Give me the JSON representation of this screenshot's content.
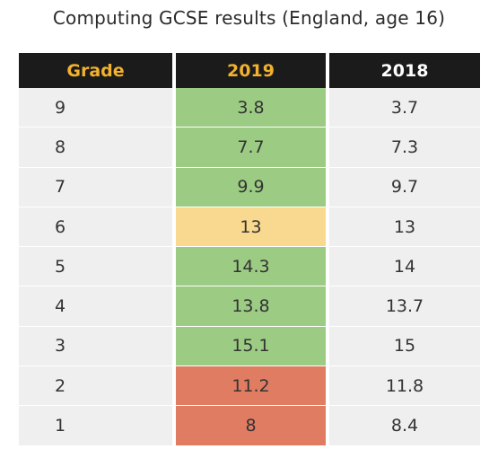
{
  "chart_data": {
    "type": "table",
    "title": "Computing GCSE results (England, age 16)",
    "columns": [
      "Grade",
      "2019",
      "2018"
    ],
    "rows": [
      {
        "grade": "9",
        "y2019": "3.8",
        "y2018": "3.7",
        "highlight": "#9ccb83"
      },
      {
        "grade": "8",
        "y2019": "7.7",
        "y2018": "7.3",
        "highlight": "#9ccb83"
      },
      {
        "grade": "7",
        "y2019": "9.9",
        "y2018": "9.7",
        "highlight": "#9ccb83"
      },
      {
        "grade": "6",
        "y2019": "13",
        "y2018": "13",
        "highlight": "#f8d98f"
      },
      {
        "grade": "5",
        "y2019": "14.3",
        "y2018": "14",
        "highlight": "#9ccb83"
      },
      {
        "grade": "4",
        "y2019": "13.8",
        "y2018": "13.7",
        "highlight": "#9ccb83"
      },
      {
        "grade": "3",
        "y2019": "15.1",
        "y2018": "15",
        "highlight": "#9ccb83"
      },
      {
        "grade": "2",
        "y2019": "11.2",
        "y2018": "11.8",
        "highlight": "#e07c62"
      },
      {
        "grade": "1",
        "y2019": "8",
        "y2018": "8.4",
        "highlight": "#e07c62"
      }
    ]
  },
  "colors": {
    "header_bg": "#1b1b1b",
    "header_text_accent": "#f2b12e",
    "header_text_2018": "#ffffff",
    "row_bg": "#efefef",
    "increase": "#9ccb83",
    "same": "#f8d98f",
    "decrease": "#e07c62"
  }
}
